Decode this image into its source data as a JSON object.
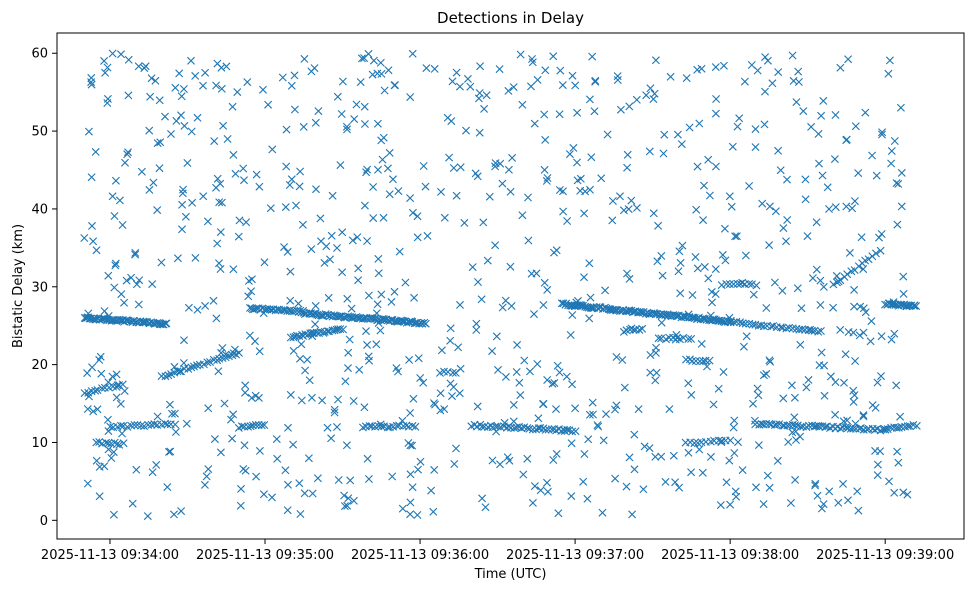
{
  "chart_data": {
    "type": "scatter",
    "title": "Detections in Delay",
    "xlabel": "Time (UTC)",
    "ylabel": "Bistatic Delay (km)",
    "marker": "x",
    "color": "#1f77b4",
    "xlim_seconds": [
      -20.5,
      330.5
    ],
    "ylim": [
      -2.4,
      62.6
    ],
    "x_ticks": [
      {
        "t": 0,
        "label": "2025-11-13 09:34:00"
      },
      {
        "t": 60,
        "label": "2025-11-13 09:35:00"
      },
      {
        "t": 120,
        "label": "2025-11-13 09:36:00"
      },
      {
        "t": 180,
        "label": "2025-11-13 09:37:00"
      },
      {
        "t": 240,
        "label": "2025-11-13 09:38:00"
      },
      {
        "t": 300,
        "label": "2025-11-13 09:39:00"
      }
    ],
    "y_ticks": [
      0,
      10,
      20,
      30,
      40,
      50,
      60
    ],
    "tracks": [
      {
        "t0": -10,
        "t1": 22,
        "y0": 26.0,
        "y1": 25.2,
        "n": 60
      },
      {
        "t0": 54,
        "t1": 75,
        "y0": 27.2,
        "y1": 26.8,
        "n": 30
      },
      {
        "t0": 75,
        "t1": 122,
        "y0": 26.6,
        "y1": 25.3,
        "n": 80
      },
      {
        "t0": 175,
        "t1": 240,
        "y0": 27.8,
        "y1": 25.5,
        "n": 110
      },
      {
        "t0": 240,
        "t1": 275,
        "y0": 25.5,
        "y1": 24.2,
        "n": 30
      },
      {
        "t0": 300,
        "t1": 312,
        "y0": 27.8,
        "y1": 27.5,
        "n": 22
      },
      {
        "t0": 70,
        "t1": 90,
        "y0": 23.5,
        "y1": 24.6,
        "n": 25
      },
      {
        "t0": -10,
        "t1": 5,
        "y0": 16.4,
        "y1": 17.4,
        "n": 12
      },
      {
        "t0": 20,
        "t1": 50,
        "y0": 18.5,
        "y1": 21.5,
        "n": 25
      },
      {
        "t0": 0,
        "t1": 25,
        "y0": 12.0,
        "y1": 12.4,
        "n": 20
      },
      {
        "t0": 50,
        "t1": 60,
        "y0": 12.0,
        "y1": 12.2,
        "n": 10
      },
      {
        "t0": 98,
        "t1": 118,
        "y0": 12.0,
        "y1": 12.1,
        "n": 18
      },
      {
        "t0": 140,
        "t1": 180,
        "y0": 12.2,
        "y1": 11.5,
        "n": 40
      },
      {
        "t0": 250,
        "t1": 300,
        "y0": 12.4,
        "y1": 11.6,
        "n": 50
      },
      {
        "t0": 300,
        "t1": 312,
        "y0": 11.8,
        "y1": 12.2,
        "n": 12
      },
      {
        "t0": 223,
        "t1": 240,
        "y0": 10.0,
        "y1": 10.2,
        "n": 12
      },
      {
        "t0": -5,
        "t1": 5,
        "y0": 10.0,
        "y1": 9.8,
        "n": 10
      },
      {
        "t0": 212,
        "t1": 225,
        "y0": 23.4,
        "y1": 23.3,
        "n": 10
      },
      {
        "t0": 223,
        "t1": 232,
        "y0": 20.6,
        "y1": 20.5,
        "n": 8
      },
      {
        "t0": 200,
        "t1": 206,
        "y0": 24.5,
        "y1": 24.5,
        "n": 6
      },
      {
        "t0": 237,
        "t1": 250,
        "y0": 30.3,
        "y1": 30.3,
        "n": 10
      },
      {
        "t0": 280,
        "t1": 298,
        "y0": 30.2,
        "y1": 34.6,
        "n": 14
      },
      {
        "t0": 128,
        "t1": 134,
        "y0": 19.0,
        "y1": 19.0,
        "n": 5
      }
    ],
    "scatter_points": 900,
    "scatter_y_range": [
      0.5,
      60
    ]
  }
}
